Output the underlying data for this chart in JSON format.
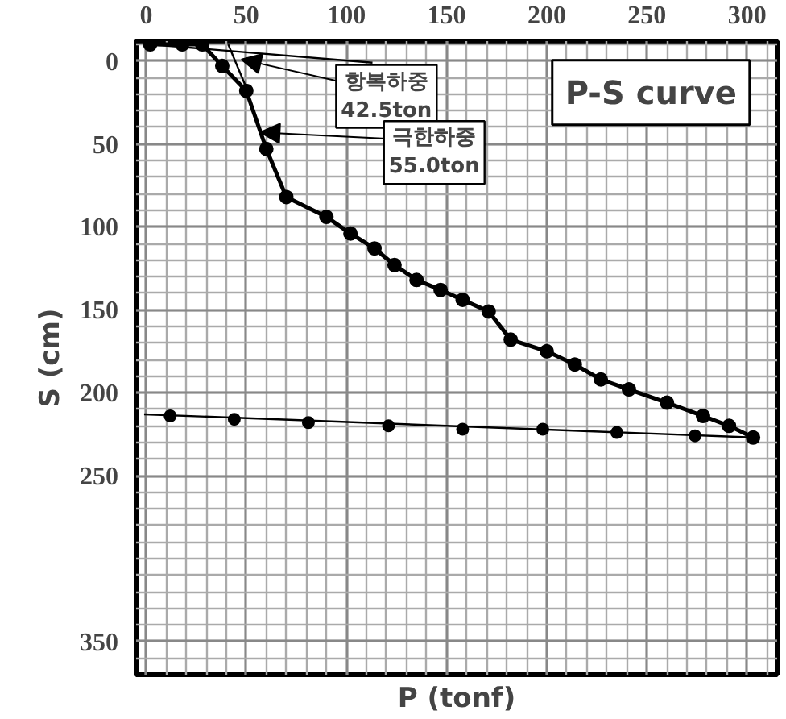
{
  "chart_data": {
    "type": "line",
    "title": "P-S curve",
    "xlabel": "P (tonf)",
    "ylabel": "S (cm)",
    "xlim": [
      -5,
      315
    ],
    "ylim": [
      370,
      -12
    ],
    "xticks": [
      0,
      50,
      100,
      150,
      200,
      250,
      300
    ],
    "yticks": [
      0,
      50,
      100,
      150,
      200,
      250,
      350
    ],
    "grid": true,
    "marker": "circle",
    "line_style": "solid",
    "tick_labels": "xy",
    "series": [
      {
        "color": "#000000",
        "x": [
          2,
          18,
          28,
          38,
          50,
          60,
          70,
          90,
          102,
          114,
          124,
          135,
          147,
          158,
          171,
          182,
          200,
          214,
          227,
          241,
          260,
          278,
          291,
          303
        ],
        "values": [
          -10,
          -10,
          -10,
          3,
          18,
          53,
          82,
          94,
          104,
          113,
          123,
          132,
          138,
          144,
          151,
          168,
          175,
          183,
          192,
          198,
          206,
          214,
          220,
          227
        ]
      },
      {
        "type": "scatter",
        "color": "#000000",
        "x": [
          12,
          44,
          81,
          121,
          158,
          198,
          235,
          274
        ],
        "values": [
          214,
          216,
          218,
          220,
          222,
          222,
          224,
          226
        ]
      },
      {
        "type": "line",
        "color": "#000000",
        "marker": "none",
        "x": [
          -1,
          303
        ],
        "values": [
          213,
          227
        ]
      },
      {
        "type": "line",
        "color": "#000000",
        "marker": "none",
        "x": [
          2,
          113
        ],
        "values": [
          -10,
          1
        ]
      },
      {
        "type": "line",
        "color": "#000000",
        "marker": "none",
        "x": [
          41,
          51
        ],
        "values": [
          -10,
          19
        ]
      }
    ],
    "annotations": [
      {
        "text": "항복하중\n42.5ton",
        "x": 47.6,
        "y": -1
      },
      {
        "text": "극한하중\n55.0ton",
        "x": 57,
        "y": 43
      }
    ]
  }
}
